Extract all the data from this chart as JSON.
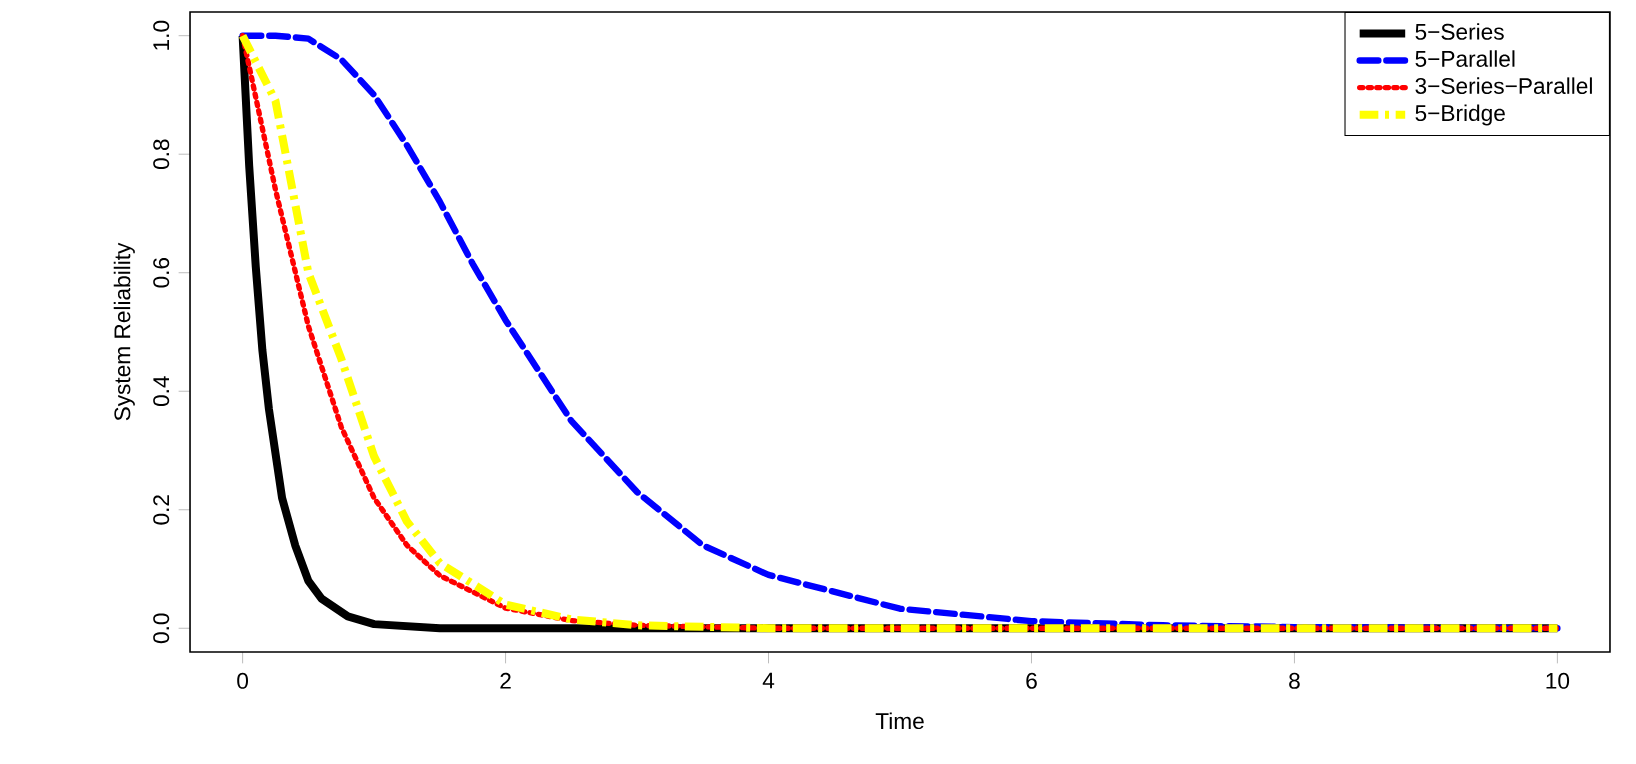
{
  "chart_data": {
    "type": "line",
    "xlabel": "Time",
    "ylabel": "System Reliability",
    "xlim": [
      -0.4,
      10.4
    ],
    "ylim": [
      -0.04,
      1.04
    ],
    "xticks": [
      0,
      2,
      4,
      6,
      8,
      10
    ],
    "yticks": [
      {
        "value": 0,
        "label": "0.0"
      },
      {
        "value": 0.2,
        "label": "0.2"
      },
      {
        "value": 0.4,
        "label": "0.4"
      },
      {
        "value": 0.6,
        "label": "0.6"
      },
      {
        "value": 0.8,
        "label": "0.8"
      },
      {
        "value": 1,
        "label": "1.0"
      }
    ],
    "grid": false,
    "legend": "top right",
    "series": [
      {
        "name": "5−Series",
        "color": "#000000",
        "line_style": "solid",
        "x": [
          0,
          0.05,
          0.1,
          0.15,
          0.2,
          0.3,
          0.4,
          0.5,
          0.6,
          0.8,
          1,
          1.5,
          2,
          4,
          6,
          8,
          10
        ],
        "values": [
          1,
          0.78,
          0.61,
          0.47,
          0.37,
          0.22,
          0.14,
          0.08,
          0.05,
          0.02,
          0.007,
          0,
          0,
          0,
          0,
          0,
          0
        ]
      },
      {
        "name": "5−Parallel",
        "color": "#0000ff",
        "line_style": "dashed",
        "x": [
          0,
          0.25,
          0.5,
          0.75,
          1,
          1.25,
          1.5,
          1.75,
          2,
          2.5,
          3,
          3.5,
          4,
          5,
          6,
          7,
          8,
          10
        ],
        "values": [
          1,
          1,
          0.995,
          0.96,
          0.9,
          0.815,
          0.72,
          0.615,
          0.52,
          0.35,
          0.23,
          0.14,
          0.09,
          0.033,
          0.012,
          0.005,
          0.002,
          0
        ]
      },
      {
        "name": "3−Series−Parallel",
        "color": "#ff0000",
        "line_style": "dotted",
        "x": [
          0,
          0.25,
          0.5,
          0.75,
          1,
          1.25,
          1.5,
          2,
          2.5,
          3,
          4,
          6,
          8,
          10
        ],
        "values": [
          1,
          0.74,
          0.51,
          0.34,
          0.22,
          0.14,
          0.089,
          0.034,
          0.013,
          0.005,
          0,
          0,
          0,
          0
        ]
      },
      {
        "name": "5−Bridge",
        "color": "#ffff00",
        "line_style": "dashdot",
        "x": [
          0,
          0.25,
          0.5,
          0.75,
          1,
          1.25,
          1.5,
          2,
          2.5,
          3,
          4,
          6,
          8,
          10
        ],
        "values": [
          1,
          0.89,
          0.6,
          0.455,
          0.29,
          0.18,
          0.11,
          0.04,
          0.015,
          0.005,
          0,
          0,
          0,
          0
        ]
      }
    ]
  }
}
